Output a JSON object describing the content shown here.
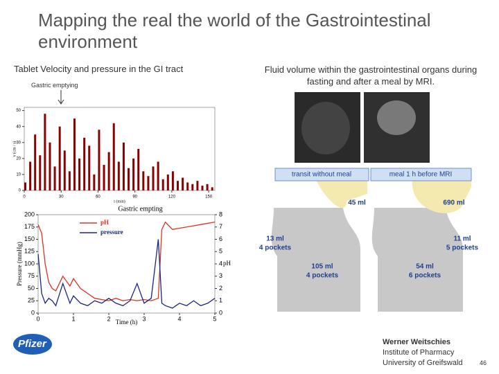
{
  "slide": {
    "title": "Mapping the real the world of the Gastrointestinal environment",
    "left_heading": "Tablet Velocity and pressure in the GI tract",
    "right_heading": "Fluid volume within the gastrointestinal organs during fasting and after a meal by MRI.",
    "gastric_label": "Gastric emptying",
    "diagram": {
      "left_title": "transit without meal",
      "right_title": "meal 1 h before MRI",
      "labels": [
        [
          "45 ml"
        ],
        [
          "690 ml"
        ],
        [
          "13 ml",
          "4 pockets"
        ],
        [
          "11 ml",
          "5 pockets"
        ],
        [
          "105 ml",
          "4 pockets"
        ],
        [
          "54 ml",
          "6 pockets"
        ]
      ]
    },
    "footer": {
      "logo": "Pfizer",
      "author": "Werner Weitschies",
      "institute": "Institute of Pharmacy",
      "university": "University of Greifswald",
      "page": "46"
    }
  },
  "chart_data": [
    {
      "type": "bar",
      "ylabel": "v (cm / s)",
      "xlabel": "t (min)",
      "color": "#8b0000",
      "x": [
        0,
        4,
        8,
        12,
        16,
        20,
        24,
        28,
        32,
        36,
        40,
        44,
        48,
        52,
        56,
        60,
        64,
        68,
        72,
        76,
        80,
        84,
        88,
        92,
        96,
        100,
        104,
        108,
        112,
        116,
        120,
        124,
        128,
        132,
        136,
        140,
        144,
        148,
        152
      ],
      "values": [
        5,
        18,
        35,
        22,
        48,
        30,
        15,
        40,
        25,
        12,
        45,
        20,
        33,
        28,
        10,
        38,
        16,
        24,
        42,
        18,
        30,
        14,
        20,
        26,
        12,
        9,
        15,
        18,
        7,
        10,
        12,
        6,
        8,
        5,
        4,
        6,
        3,
        4,
        2
      ],
      "xlim": [
        0,
        155
      ],
      "ylim": [
        0,
        52
      ],
      "xticks": [
        0,
        30,
        60,
        90,
        120,
        150
      ],
      "yticks": [
        0,
        10,
        20,
        30,
        40,
        50
      ]
    },
    {
      "type": "line",
      "title": "Gastric empting",
      "ylabel": "Pressure (mmHg)",
      "y2label": "pH",
      "xlabel": "Time (h)",
      "x": [
        0,
        0.1,
        0.2,
        0.3,
        0.4,
        0.5,
        0.7,
        0.9,
        1.0,
        1.2,
        1.4,
        1.6,
        1.8,
        2.0,
        2.2,
        2.4,
        2.6,
        2.8,
        3.0,
        3.2,
        3.4,
        3.5,
        3.6,
        3.8,
        4.0,
        4.2,
        4.4,
        4.6,
        4.8,
        5.0
      ],
      "series": [
        {
          "name": "pH",
          "color": "#e03020",
          "axis": "y2",
          "values": [
            7.2,
            6.5,
            4,
            2.5,
            2,
            1.8,
            3,
            2.2,
            2.8,
            2,
            1.6,
            1.2,
            1.1,
            1,
            1.2,
            1,
            1.1,
            1,
            1.1,
            1,
            1.2,
            6.8,
            7.4,
            6.8,
            6.9,
            7,
            7.1,
            7.2,
            7.3,
            7.4
          ]
        },
        {
          "name": "pressure",
          "color": "#1a237e",
          "values": [
            120,
            40,
            20,
            30,
            25,
            15,
            60,
            20,
            35,
            20,
            15,
            25,
            20,
            30,
            20,
            15,
            25,
            60,
            20,
            30,
            150,
            20,
            15,
            10,
            20,
            15,
            25,
            15,
            20,
            30
          ]
        }
      ],
      "xlim": [
        0,
        5
      ],
      "ylim": [
        0,
        200
      ],
      "y2lim": [
        0,
        8
      ],
      "xticks": [
        0,
        1,
        2,
        3,
        4,
        5
      ],
      "yticks": [
        0,
        25,
        50,
        75,
        100,
        125,
        150,
        175,
        200
      ],
      "y2ticks": [
        0,
        1,
        2,
        3,
        4,
        5,
        6,
        7,
        8
      ]
    }
  ]
}
